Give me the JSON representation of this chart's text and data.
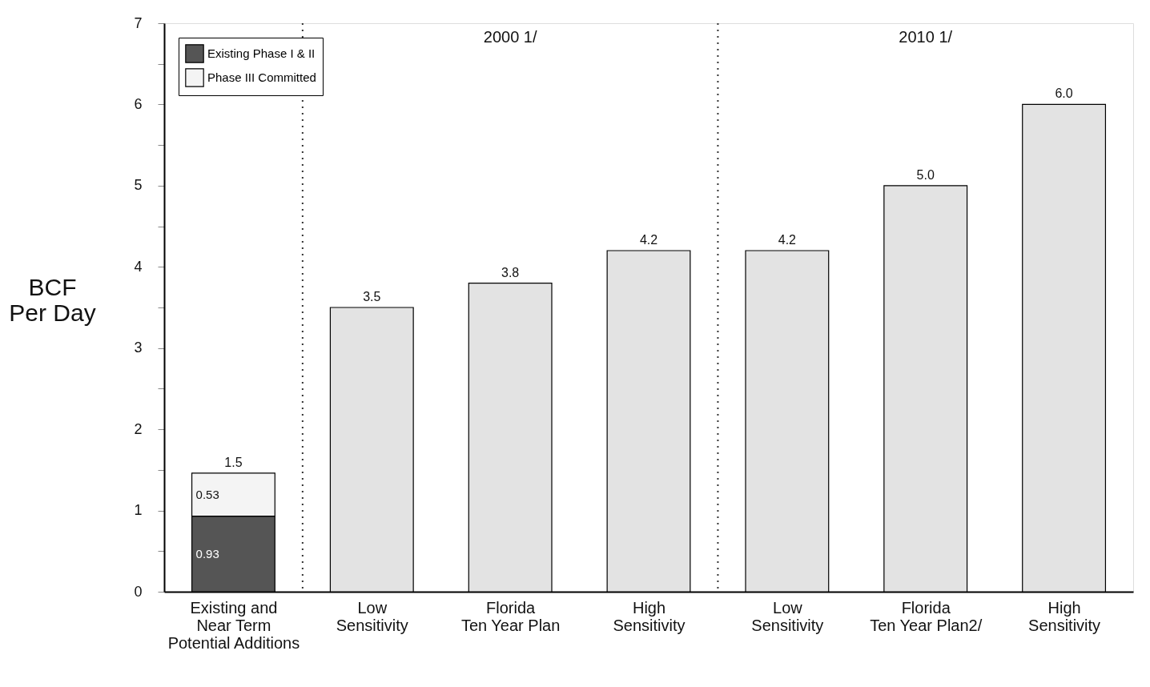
{
  "chart_data": {
    "type": "bar",
    "stacked": true,
    "categories": [
      "Existing and\nNear Term\nPotential Additions",
      "Low\nSensitivity",
      "Florida\nTen Year Plan",
      "High\nSensitivity",
      "Low\nSensitivity",
      "Florida\nTen Year Plan2/",
      "High\nSensitivity"
    ],
    "ylabel": "BCF\nPer Day",
    "series": [
      {
        "name": "Existing\nPhase I & II",
        "color": "#555555",
        "values": [
          0.93,
          null,
          null,
          null,
          null,
          null,
          null
        ],
        "value_labels": [
          "0.93",
          null,
          null,
          null,
          null,
          null,
          null
        ]
      },
      {
        "name": "Phase III\nCommitted",
        "color": "#f4f4f4",
        "values": [
          0.53,
          null,
          null,
          null,
          null,
          null,
          null
        ],
        "value_labels": [
          "0.53",
          null,
          null,
          null,
          null,
          null,
          null
        ]
      },
      {
        "color": "#e3e3e3",
        "values": [
          null,
          3.5,
          3.8,
          4.2,
          4.2,
          5.0,
          6.0
        ],
        "value_labels": [
          null,
          "3.5",
          "3.8",
          "4.2",
          "4.2",
          "5.0",
          "6.0"
        ]
      }
    ],
    "totals": [
      "1.5",
      null,
      null,
      null,
      null,
      null,
      null
    ],
    "ylim": [
      0,
      7
    ],
    "yticks": [
      0,
      {
        "value": 0.5,
        "label": null
      },
      1,
      {
        "value": 1.5,
        "label": null
      },
      2,
      {
        "value": 2.5,
        "label": null
      },
      3,
      {
        "value": 3.5,
        "label": null
      },
      4,
      {
        "value": 4.5,
        "label": null
      },
      5,
      {
        "value": 5.5,
        "label": null
      },
      6,
      {
        "value": 6.5,
        "label": null
      },
      7
    ],
    "annotations": [
      "2000 1/",
      "2010 1/"
    ],
    "legend": "top left",
    "grid": false
  }
}
